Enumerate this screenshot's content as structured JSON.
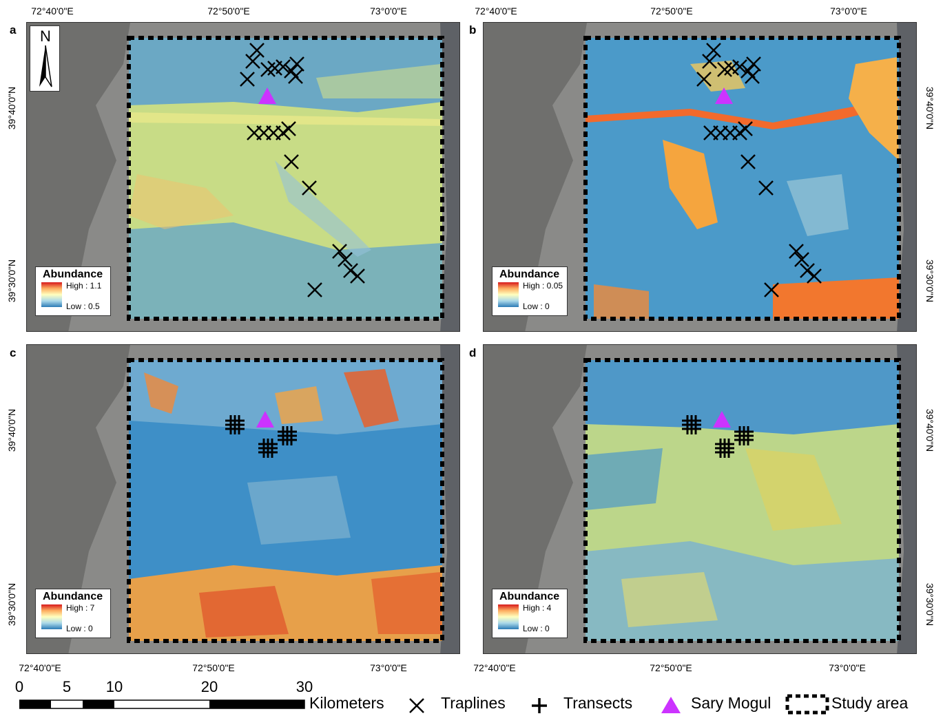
{
  "coords": {
    "lon_1": "72°40'0\"E",
    "lon_2": "72°50'0\"E",
    "lon_3": "73°0'0\"E",
    "lat_1": "39°40'0\"N",
    "lat_2": "39°30'0\"N"
  },
  "panels": [
    {
      "label": "a",
      "legend_title": "Abundance",
      "high": "High : 1.1",
      "low": "Low : 0.5",
      "marker": "traplines",
      "base": "#b9d97a"
    },
    {
      "label": "b",
      "legend_title": "Abundance",
      "high": "High : 0.05",
      "low": "Low : 0",
      "marker": "traplines",
      "base": "#4b9ac9"
    },
    {
      "label": "c",
      "legend_title": "Abundance",
      "high": "High : 7",
      "low": "Low : 0",
      "marker": "transects",
      "base": "#3e8fc7"
    },
    {
      "label": "d",
      "legend_title": "Abundance",
      "high": "High : 4",
      "low": "Low : 0",
      "marker": "transects",
      "base": "#bfd88a"
    }
  ],
  "north_label": "N",
  "scale": {
    "ticks": [
      "0",
      "5",
      "10",
      "20",
      "30"
    ],
    "unit": "Kilometers"
  },
  "legend": {
    "traplines": "Traplines",
    "transects": "Transects",
    "site": "Sary Mogul",
    "study_area": "Study area"
  },
  "colors": {
    "high": "#d7191c",
    "mid": "#ffffbf",
    "low": "#2c7bb6",
    "site_marker": "#cc33ff"
  }
}
